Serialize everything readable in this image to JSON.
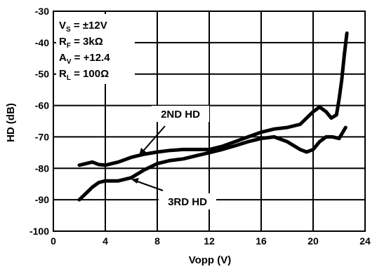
{
  "chart_data": {
    "type": "line",
    "xlabel": "Vopp (V)",
    "ylabel": "HD (dB)",
    "xlim": [
      0,
      24
    ],
    "ylim": [
      -100,
      -30
    ],
    "x_ticks": [
      "0",
      "4",
      "8",
      "12",
      "16",
      "20",
      "24"
    ],
    "y_ticks": [
      "-30",
      "-40",
      "-50",
      "-60",
      "-70",
      "-80",
      "-90",
      "-100"
    ],
    "grid": true,
    "conditions": [
      {
        "main": "V",
        "sub": "S",
        "rest": " = ±12V"
      },
      {
        "main": "R",
        "sub": "F",
        "rest": " = 3kΩ"
      },
      {
        "main": "A",
        "sub": "V",
        "rest": " = +12.4"
      },
      {
        "main": "R",
        "sub": "L",
        "rest": " = 100Ω"
      }
    ],
    "series": [
      {
        "name": "2ND HD",
        "x": [
          2,
          2.5,
          3,
          3.5,
          4,
          5,
          6,
          7,
          8,
          9,
          10,
          11,
          12,
          13,
          14,
          15,
          16,
          17,
          18,
          19,
          20,
          20.5,
          21,
          21.4,
          21.8,
          22,
          22.2,
          22.4,
          22.6
        ],
        "y": [
          -79,
          -78.5,
          -78,
          -78.8,
          -79,
          -78,
          -76.5,
          -75.5,
          -74.8,
          -74.3,
          -74,
          -74,
          -74,
          -73,
          -71.5,
          -70,
          -68.5,
          -67.5,
          -67,
          -66,
          -62,
          -60.5,
          -62,
          -64,
          -63,
          -58,
          -52,
          -44,
          -37
        ]
      },
      {
        "name": "3RD HD",
        "x": [
          2,
          2.5,
          3,
          3.5,
          4,
          5,
          6,
          7,
          8,
          9,
          10,
          11,
          12,
          13,
          14,
          15,
          16,
          17,
          18,
          19,
          19.5,
          20,
          20.5,
          21,
          21.5,
          22,
          22.5
        ],
        "y": [
          -90,
          -88,
          -86,
          -84.5,
          -84,
          -84,
          -83,
          -80.5,
          -78.5,
          -77.5,
          -77,
          -76,
          -75,
          -74,
          -72.8,
          -71.5,
          -70.5,
          -70,
          -71.5,
          -74,
          -74.8,
          -74,
          -71.5,
          -70,
          -70,
          -70.5,
          -67
        ]
      }
    ],
    "annotations": [
      "2ND HD",
      "3RD HD"
    ]
  }
}
